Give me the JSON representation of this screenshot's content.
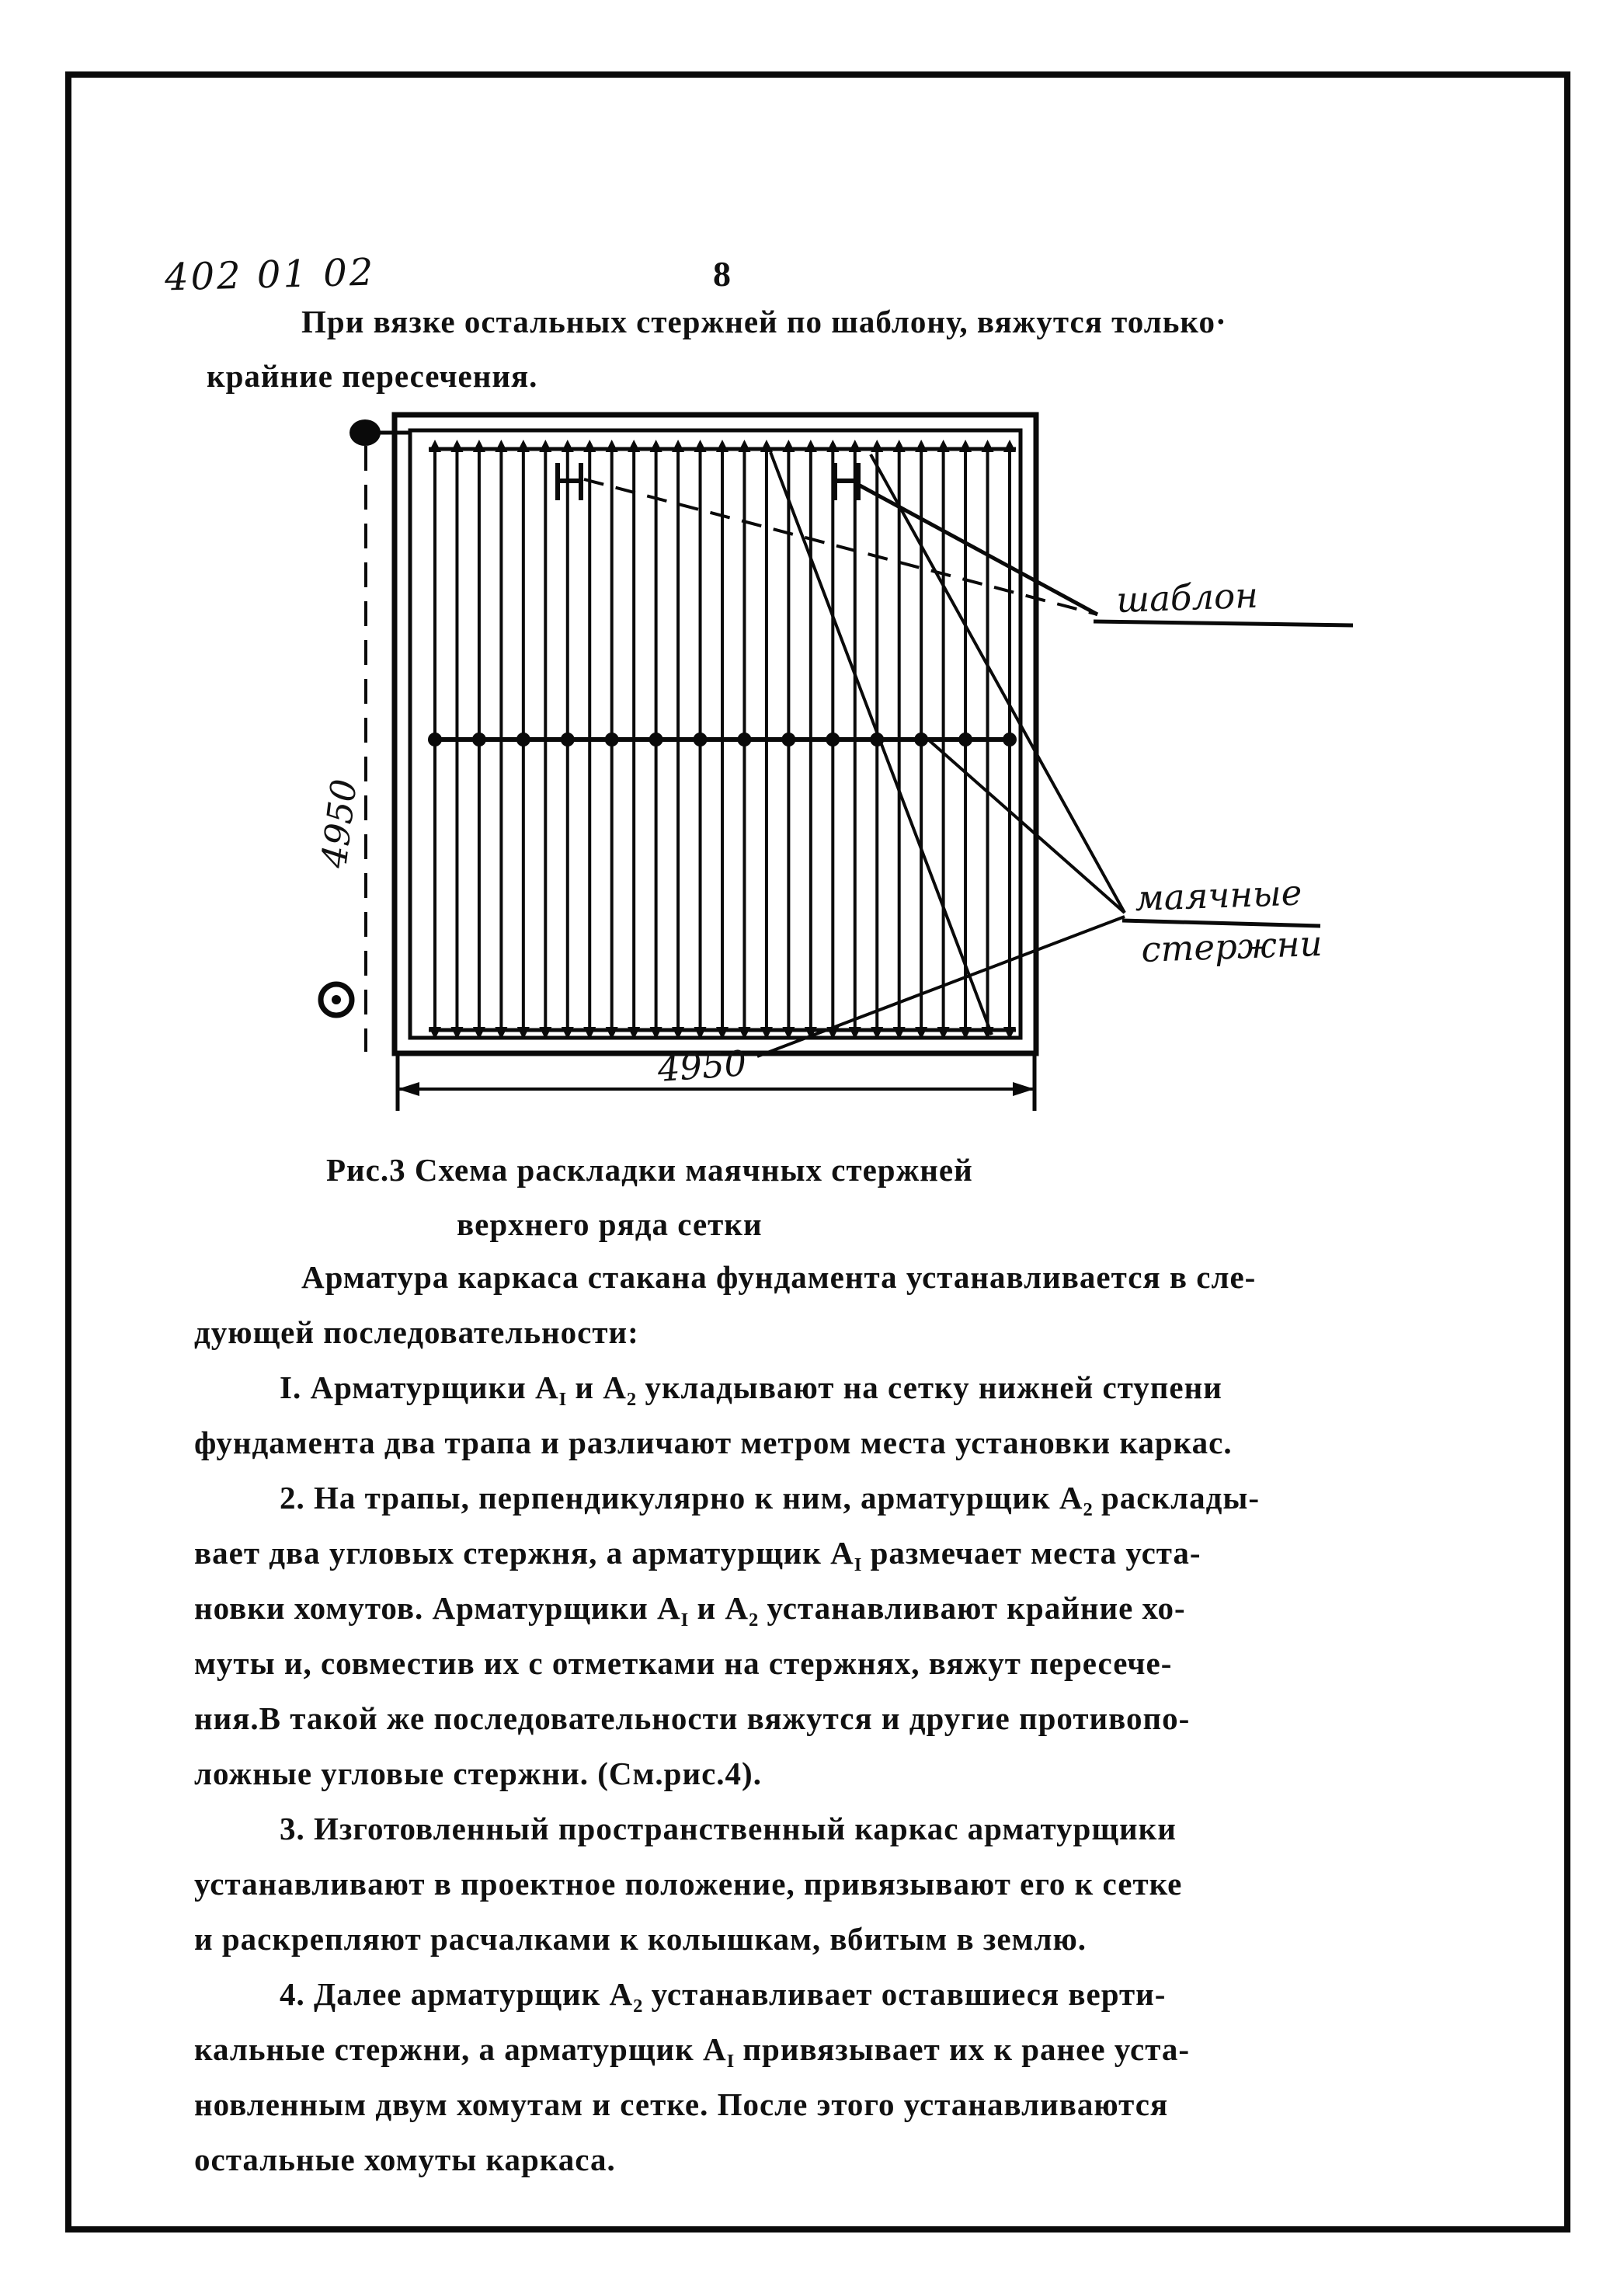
{
  "page": {
    "code": "402 01 02",
    "number": "8"
  },
  "intro": {
    "l1": "При вязке остальных стержней по шаблону, вяжутся только·",
    "l2": "крайние пересечения."
  },
  "figure": {
    "label_template": "шаблон",
    "label_beacon_l1": "маячные",
    "label_beacon_l2": "стержни",
    "dim_vertical": "4950",
    "dim_horizontal": "4950",
    "caption_l1": "Рис.3 Схема раскладки маячных стержней",
    "caption_l2": "верхнего ряда сетки"
  },
  "body": {
    "p2_l1": "Арматура каркаса стакана фундамента устанавливается в сле-",
    "p2_l2": "дующей последовательности:",
    "i1_l1": {
      "a": "I. Арматурщики А",
      "s1": "I",
      "b": " и А",
      "s2": "2",
      "c": " укладывают на сетку нижней ступени"
    },
    "i1_l2": "фундамента два трапа и различают метром места установки каркас.",
    "i2_l1": {
      "a": "2. На трапы, перпендикулярно к ним, арматурщик А",
      "s1": "2",
      "b": " расклады-"
    },
    "i2_l2": {
      "a": "вает два угловых стержня, а арматурщик А",
      "s1": "I",
      "b": " размечает места уста-"
    },
    "i2_l3": {
      "a": "новки хомутов. Арматурщики А",
      "s1": "I",
      "b": " и А",
      "s2": "2",
      "c": " устанавливают крайние хо-"
    },
    "i2_l4": "муты и, совместив их с отметками на стержнях, вяжут пересече-",
    "i2_l5": "ния.В такой же последовательности вяжутся и другие противопо-",
    "i2_l6": "ложные угловые стержни. (См.рис.4).",
    "i3_l1": "3. Изготовленный пространственный каркас арматурщики",
    "i3_l2": "устанавливают в проектное положение, привязывают его к сетке",
    "i3_l3": "и раскрепляют расчалками к колышкам, вбитым в землю.",
    "i4_l1": {
      "a": "4. Далее арматурщик А",
      "s1": "2",
      "b": " устанавливает оставшиеся верти-"
    },
    "i4_l2": {
      "a": "кальные стержни, а арматурщик А",
      "s1": "I",
      "b": " привязывает их к ранее уста-"
    },
    "i4_l3": "новленным двум хомутам и сетке. После этого устанавливаются",
    "i4_l4": "остальные хомуты каркаса."
  }
}
